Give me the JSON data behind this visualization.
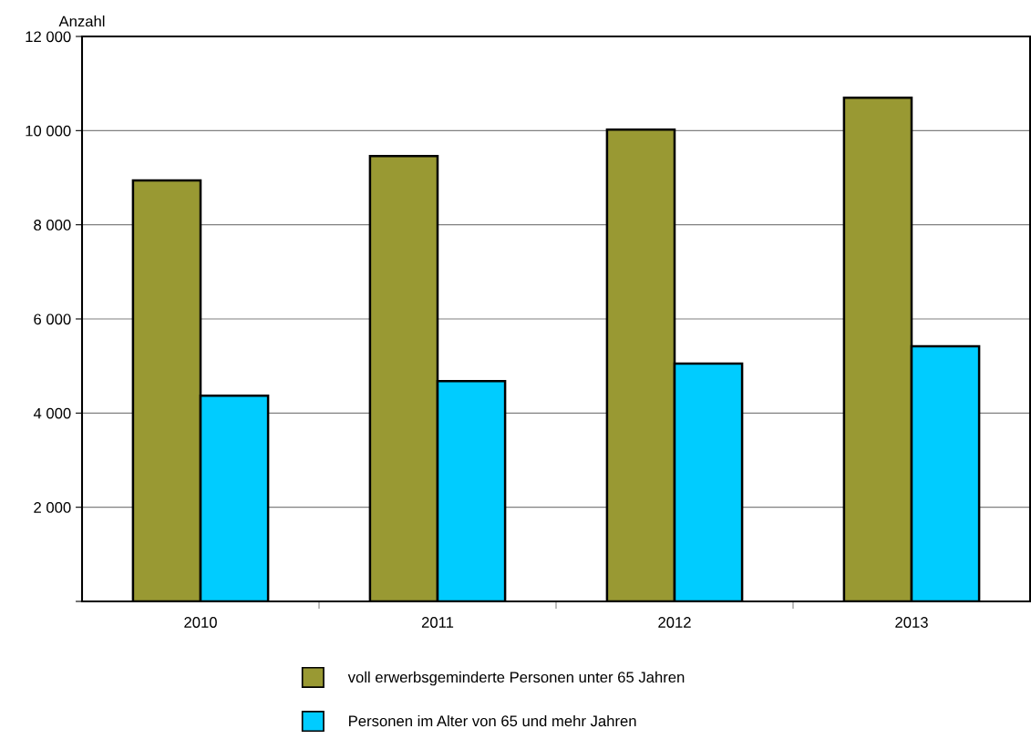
{
  "chart_data": {
    "type": "bar",
    "ylabel": "Anzahl",
    "categories": [
      "2010",
      "2011",
      "2012",
      "2013"
    ],
    "series": [
      {
        "name": "voll erwerbsgeminderte Personen unter 65 Jahren",
        "color": "#999933",
        "values": [
          8940,
          9460,
          10020,
          10700
        ]
      },
      {
        "name": "Personen im Alter von 65 und mehr Jahren",
        "color": "#00ccff",
        "values": [
          4370,
          4680,
          5050,
          5420
        ]
      }
    ],
    "ylim": [
      0,
      12000
    ],
    "yticks": [
      {
        "value": 0,
        "label": null
      },
      {
        "value": 2000,
        "label": "2 000"
      },
      {
        "value": 4000,
        "label": "4 000"
      },
      {
        "value": 6000,
        "label": "6 000"
      },
      {
        "value": 8000,
        "label": "8 000"
      },
      {
        "value": 10000,
        "label": "10 000"
      },
      {
        "value": 12000,
        "label": "12 000"
      }
    ],
    "grid": "y",
    "legend": "bottom"
  }
}
